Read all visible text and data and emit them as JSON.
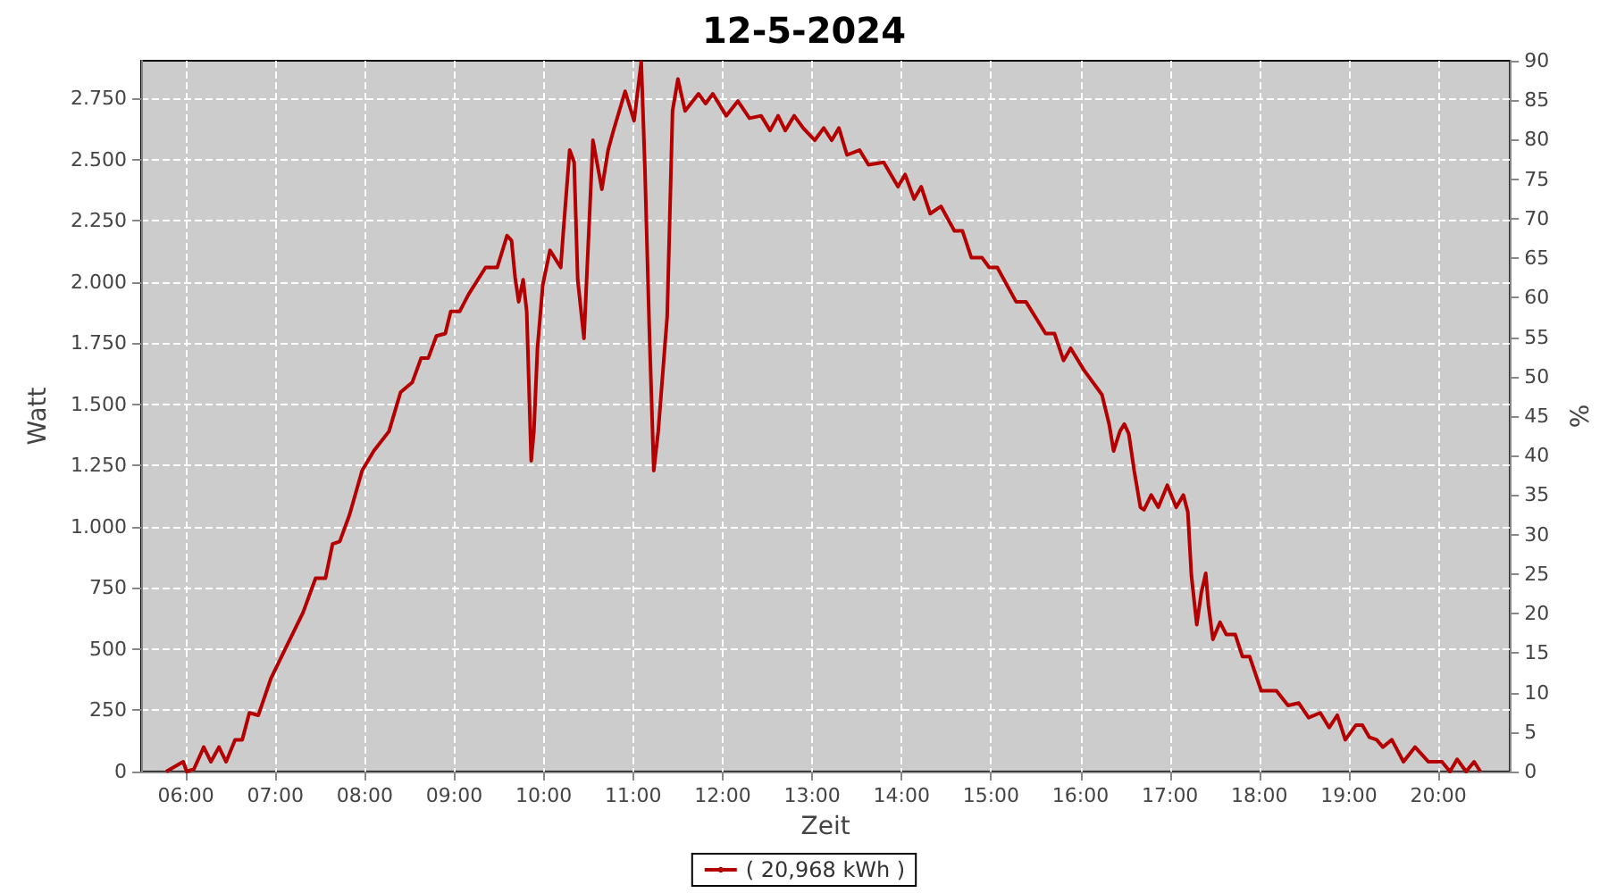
{
  "chart_data": {
    "type": "line",
    "title": "12-5-2024",
    "xlabel": "Zeit",
    "ylabel": "Watt",
    "y2label": "%",
    "xlim": [
      5.5,
      20.8
    ],
    "xticks": [
      {
        "value": 6,
        "label": "06:00"
      },
      {
        "value": 7,
        "label": "07:00"
      },
      {
        "value": 8,
        "label": "08:00"
      },
      {
        "value": 9,
        "label": "09:00"
      },
      {
        "value": 10,
        "label": "10:00"
      },
      {
        "value": 11,
        "label": "11:00"
      },
      {
        "value": 12,
        "label": "12:00"
      },
      {
        "value": 13,
        "label": "13:00"
      },
      {
        "value": 14,
        "label": "14:00"
      },
      {
        "value": 15,
        "label": "15:00"
      },
      {
        "value": 16,
        "label": "16:00"
      },
      {
        "value": 17,
        "label": "17:00"
      },
      {
        "value": 18,
        "label": "18:00"
      },
      {
        "value": 19,
        "label": "19:00"
      },
      {
        "value": 20,
        "label": "20:00"
      }
    ],
    "ylim": [
      0,
      2905
    ],
    "yticks": [
      0,
      250,
      500,
      750,
      {
        "value": 1000,
        "label": "1.000"
      },
      {
        "value": 1250,
        "label": "1.250"
      },
      {
        "value": 1500,
        "label": "1.500"
      },
      {
        "value": 1750,
        "label": "1.750"
      },
      {
        "value": 2000,
        "label": "2.000"
      },
      {
        "value": 2250,
        "label": "2.250"
      },
      {
        "value": 2500,
        "label": "2.500"
      },
      {
        "value": 2750,
        "label": "2.750"
      }
    ],
    "y2lim": [
      0,
      90
    ],
    "y2ticks": [
      0,
      5,
      10,
      15,
      20,
      25,
      30,
      35,
      40,
      45,
      50,
      55,
      60,
      65,
      70,
      75,
      80,
      85,
      90
    ],
    "grid": true,
    "legend": "bottom",
    "marker": "none",
    "line_style": "solid",
    "series": [
      {
        "name": "( 20,968 kWh )",
        "color": "#b40000",
        "x": [
          5.78,
          5.97,
          6.01,
          6.09,
          6.2,
          6.28,
          6.37,
          6.45,
          6.55,
          6.63,
          6.71,
          6.81,
          6.95,
          7.11,
          7.31,
          7.45,
          7.56,
          7.64,
          7.72,
          7.83,
          7.97,
          8.1,
          8.27,
          8.4,
          8.53,
          8.63,
          8.71,
          8.8,
          8.9,
          8.96,
          9.06,
          9.16,
          9.35,
          9.48,
          9.59,
          9.64,
          9.68,
          9.72,
          9.77,
          9.81,
          9.86,
          9.89,
          9.93,
          9.99,
          10.07,
          10.19,
          10.22,
          10.29,
          10.34,
          10.38,
          10.45,
          10.55,
          10.65,
          10.72,
          10.78,
          10.91,
          11.01,
          11.09,
          11.13,
          11.18,
          11.23,
          11.28,
          11.38,
          11.44,
          11.5,
          11.58,
          11.73,
          11.81,
          11.89,
          12.04,
          12.17,
          12.3,
          12.43,
          12.53,
          12.62,
          12.7,
          12.8,
          12.9,
          13.03,
          13.13,
          13.22,
          13.3,
          13.39,
          13.53,
          13.63,
          13.8,
          13.96,
          14.04,
          14.14,
          14.22,
          14.32,
          14.44,
          14.59,
          14.68,
          14.78,
          14.9,
          14.98,
          15.07,
          15.28,
          15.39,
          15.61,
          15.71,
          15.81,
          15.89,
          16.04,
          16.24,
          16.32,
          16.37,
          16.44,
          16.49,
          16.54,
          16.6,
          16.67,
          16.71,
          16.79,
          16.87,
          16.97,
          17.07,
          17.15,
          17.2,
          17.24,
          17.3,
          17.35,
          17.4,
          17.43,
          17.48,
          17.56,
          17.63,
          17.73,
          17.81,
          17.89,
          18.02,
          18.19,
          18.32,
          18.44,
          18.55,
          18.68,
          18.78,
          18.87,
          18.96,
          19.08,
          19.15,
          19.23,
          19.31,
          19.38,
          19.48,
          19.61,
          19.74,
          19.89,
          20.04,
          20.13,
          20.21,
          20.31,
          20.4,
          20.47
        ],
        "values": [
          0,
          40,
          0,
          10,
          100,
          40,
          100,
          40,
          130,
          130,
          240,
          230,
          380,
          500,
          650,
          790,
          790,
          930,
          940,
          1050,
          1230,
          1310,
          1390,
          1550,
          1590,
          1690,
          1690,
          1780,
          1790,
          1880,
          1880,
          1950,
          2060,
          2060,
          2190,
          2170,
          2020,
          1920,
          2010,
          1880,
          1270,
          1390,
          1730,
          1990,
          2130,
          2060,
          2210,
          2540,
          2490,
          2010,
          1770,
          2580,
          2380,
          2540,
          2620,
          2780,
          2660,
          2900,
          2480,
          1810,
          1230,
          1390,
          1860,
          2700,
          2830,
          2700,
          2770,
          2730,
          2770,
          2680,
          2740,
          2670,
          2680,
          2620,
          2680,
          2620,
          2680,
          2630,
          2580,
          2630,
          2580,
          2630,
          2520,
          2540,
          2480,
          2490,
          2390,
          2440,
          2340,
          2390,
          2280,
          2310,
          2210,
          2210,
          2100,
          2100,
          2060,
          2060,
          1920,
          1920,
          1790,
          1790,
          1680,
          1730,
          1640,
          1540,
          1420,
          1310,
          1390,
          1420,
          1380,
          1230,
          1080,
          1070,
          1130,
          1080,
          1170,
          1080,
          1130,
          1060,
          800,
          600,
          730,
          810,
          680,
          540,
          610,
          560,
          560,
          470,
          470,
          330,
          330,
          270,
          280,
          220,
          240,
          180,
          230,
          130,
          190,
          190,
          140,
          130,
          100,
          130,
          40,
          100,
          40,
          40,
          0,
          50,
          0,
          40,
          0
        ]
      }
    ]
  }
}
